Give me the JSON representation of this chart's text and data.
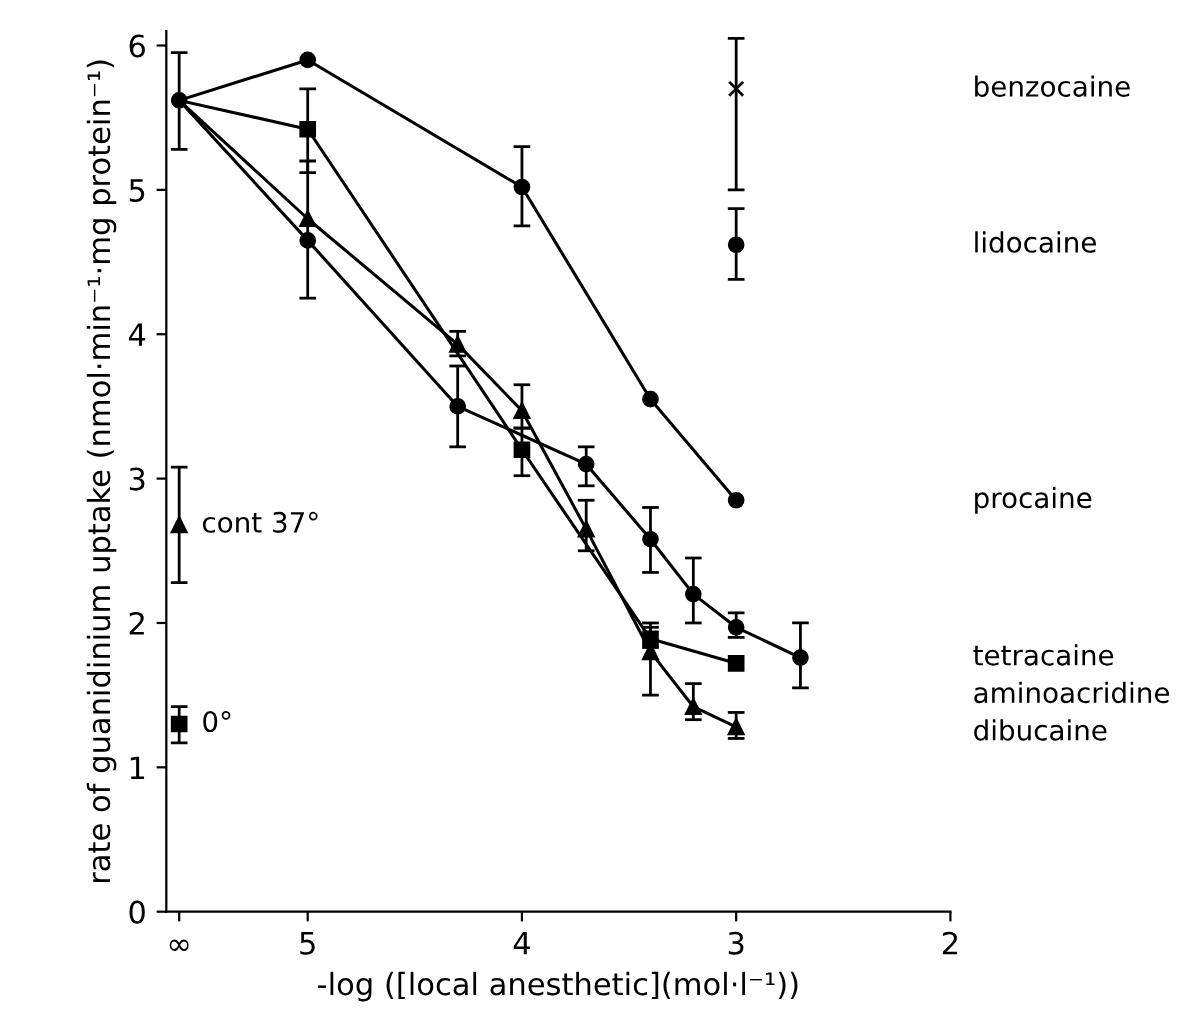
{
  "chart_data": {
    "type": "line",
    "xlabel": "-log ([local anesthetic](mol·l⁻¹))",
    "ylabel": "rate of guanidinium uptake (nmol·min⁻¹·mg protein⁻¹)",
    "xlim": [
      5.66,
      2
    ],
    "ylim": [
      0,
      6.1
    ],
    "xticks": [
      {
        "value": 5.6,
        "label": "∞"
      },
      5,
      4,
      3,
      2
    ],
    "yticks": [
      0,
      1,
      2,
      3,
      4,
      5,
      6
    ],
    "grid": false,
    "line_style": "solid",
    "series": [
      {
        "name": "benzocaine",
        "type": "scatter",
        "marker": "cross",
        "color": "#000000",
        "x": [
          3
        ],
        "values": [
          5.7
        ],
        "errors": [
          [
            5.0,
            6.05
          ]
        ]
      },
      {
        "name": "lidocaine",
        "type": "scatter",
        "marker": "circle",
        "color": "#000000",
        "x": [
          3
        ],
        "values": [
          4.62
        ],
        "errors": [
          [
            4.38,
            4.87
          ]
        ]
      },
      {
        "name": "procaine",
        "marker": "circle",
        "color": "#000000",
        "x": [
          5.6,
          5,
          4,
          3.4,
          3
        ],
        "values": [
          5.62,
          5.9,
          5.02,
          3.55,
          2.85
        ],
        "errors": [
          [
            5.28,
            5.95
          ],
          null,
          [
            4.75,
            5.3
          ],
          null,
          null
        ]
      },
      {
        "name": "tetracaine",
        "marker": "circle",
        "color": "#000000",
        "x": [
          5.6,
          5,
          4.3,
          3.7,
          3.4,
          3.2,
          3,
          2.7
        ],
        "values": [
          5.62,
          4.65,
          3.5,
          3.1,
          2.58,
          2.2,
          1.97,
          1.76
        ],
        "errors": [
          null,
          [
            4.25,
            5.2
          ],
          [
            3.22,
            3.78
          ],
          [
            2.95,
            3.22
          ],
          [
            2.35,
            2.8
          ],
          [
            2.0,
            2.45
          ],
          [
            1.9,
            2.07
          ],
          [
            1.55,
            2.0
          ]
        ]
      },
      {
        "name": "aminoacridine",
        "marker": "square",
        "color": "#000000",
        "x": [
          5.6,
          5,
          4,
          3.4,
          3
        ],
        "values": [
          5.62,
          5.42,
          3.2,
          1.89,
          1.72
        ],
        "errors": [
          null,
          [
            5.12,
            5.7
          ],
          [
            3.02,
            3.35
          ],
          [
            1.83,
            1.97
          ],
          null
        ]
      },
      {
        "name": "dibucaine",
        "marker": "triangle",
        "color": "#000000",
        "x": [
          5.6,
          5,
          4.3,
          4,
          3.7,
          3.4,
          3.2,
          3
        ],
        "values": [
          5.62,
          4.8,
          3.93,
          3.47,
          2.65,
          1.8,
          1.42,
          1.28
        ],
        "errors": [
          null,
          null,
          [
            3.85,
            4.02
          ],
          [
            3.35,
            3.65
          ],
          [
            2.5,
            2.85
          ],
          [
            1.5,
            2.0
          ],
          [
            1.33,
            1.58
          ],
          [
            1.2,
            1.38
          ]
        ]
      },
      {
        "name": "cont 37°",
        "type": "scatter",
        "marker": "triangle",
        "color": "#000000",
        "x": [
          5.6
        ],
        "values": [
          2.68
        ],
        "errors": [
          [
            2.28,
            3.08
          ]
        ]
      },
      {
        "name": "0°",
        "type": "scatter",
        "marker": "square",
        "color": "#000000",
        "x": [
          5.6
        ],
        "values": [
          1.3
        ],
        "errors": [
          [
            1.17,
            1.42
          ]
        ]
      }
    ]
  }
}
